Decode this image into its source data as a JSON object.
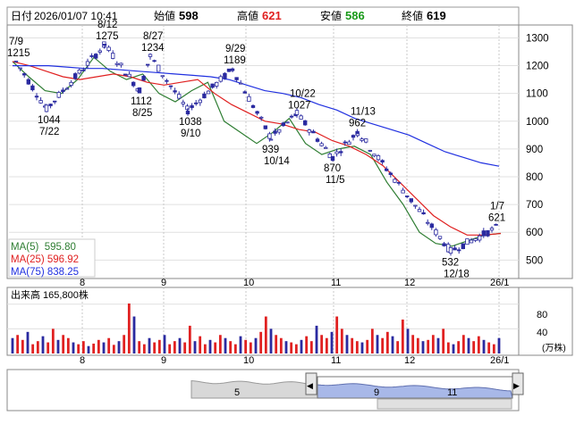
{
  "header": {
    "date_label": "日付",
    "datetime": "2026/01/07 10:41",
    "open_label": "始値",
    "open_value": "598",
    "high_label": "高値",
    "high_value": "621",
    "low_label": "安値",
    "low_value": "586",
    "close_label": "終値",
    "close_value": "619"
  },
  "colors": {
    "up_candle": "#2a2aa0",
    "down_candle": "#ffffff",
    "ma5": "#2e7d32",
    "ma25": "#e02020",
    "ma75": "#2030e0",
    "volume_red": "#e02020",
    "volume_blue": "#2a2aa0",
    "volume_annot": "#e02020",
    "navigator_fill": "#a8b8e8"
  },
  "legend": {
    "ma5": "MA(5)  595.80",
    "ma25": "MA(25) 596.92",
    "ma75": "MA(75) 838.25"
  },
  "volume_panel": {
    "title": "出来高 165,800株",
    "unit": "(万株)",
    "ticks": [
      "80",
      "40"
    ]
  },
  "x_axis_labels": [
    "8",
    "9",
    "10",
    "11",
    "12",
    "26/1"
  ],
  "navigator": {
    "labels": [
      "5",
      "9",
      "11"
    ],
    "left_arrow": "◀",
    "right_arrow": "▶"
  },
  "chart_data": {
    "type": "line",
    "title": "",
    "xlabel": "",
    "ylabel": "",
    "ylim": [
      440,
      1340
    ],
    "yticks": [
      500,
      600,
      700,
      800,
      900,
      1000,
      1100,
      1200,
      1300
    ],
    "price_series": {
      "name": "",
      "dates": [
        "7/9",
        "7/22",
        "8/12",
        "8/25",
        "8/27",
        "9/10",
        "9/29",
        "10/14",
        "10/22",
        "11/5",
        "11/13",
        "12/18",
        "1/7"
      ],
      "values": [
        1215,
        1044,
        1275,
        1112,
        1234,
        1038,
        1189,
        939,
        1027,
        870,
        962,
        532,
        621
      ]
    },
    "annotations": [
      {
        "date": "7/9",
        "value": "1215",
        "pos": "above"
      },
      {
        "date": "7/22",
        "value": "1044",
        "pos": "below"
      },
      {
        "date": "8/12",
        "value": "1275",
        "pos": "above"
      },
      {
        "date": "8/25",
        "value": "1112",
        "pos": "below"
      },
      {
        "date": "8/27",
        "value": "1234",
        "pos": "above"
      },
      {
        "date": "9/10",
        "value": "1038",
        "pos": "below"
      },
      {
        "date": "9/29",
        "value": "1189",
        "pos": "above"
      },
      {
        "date": "10/14",
        "value": "939",
        "pos": "below"
      },
      {
        "date": "10/22",
        "value": "1027",
        "pos": "above"
      },
      {
        "date": "11/5",
        "value": "870",
        "pos": "below"
      },
      {
        "date": "11/13",
        "value": "962",
        "pos": "above"
      },
      {
        "date": "12/18",
        "value": "532",
        "pos": "below"
      },
      {
        "date": "1/7",
        "value": "621",
        "pos": "above"
      }
    ],
    "ma_series": [
      {
        "name": "MA(5)",
        "values": [
          1215,
          1160,
          1110,
          1100,
          1150,
          1230,
          1180,
          1150,
          1170,
          1100,
          1070,
          1110,
          1140,
          1000,
          960,
          920,
          960,
          1010,
          920,
          880,
          900,
          910,
          880,
          780,
          700,
          600,
          560,
          550,
          570,
          590,
          596
        ]
      },
      {
        "name": "MA(25)",
        "values": [
          1215,
          1200,
          1180,
          1160,
          1150,
          1160,
          1170,
          1160,
          1140,
          1130,
          1140,
          1150,
          1100,
          1060,
          1030,
          1000,
          990,
          970,
          960,
          930,
          910,
          880,
          840,
          780,
          720,
          660,
          620,
          590,
          590,
          596
        ]
      },
      {
        "name": "MA(75)",
        "values": [
          1200,
          1200,
          1200,
          1195,
          1190,
          1190,
          1185,
          1180,
          1175,
          1170,
          1165,
          1160,
          1150,
          1130,
          1110,
          1100,
          1085,
          1060,
          1040,
          1010,
          990,
          970,
          950,
          920,
          890,
          870,
          850,
          838
        ]
      }
    ],
    "volume": {
      "unit": "万株",
      "ylim": [
        0,
        110
      ],
      "yticks": [
        40,
        80
      ],
      "values": [
        25,
        30,
        22,
        35,
        15,
        20,
        28,
        18,
        40,
        22,
        30,
        25,
        18,
        15,
        20,
        12,
        16,
        22,
        18,
        25,
        14,
        20,
        30,
        110,
        60,
        20,
        15,
        25,
        18,
        22,
        30,
        15,
        20,
        25,
        18,
        45,
        20,
        28,
        15,
        22,
        18,
        30,
        25,
        20,
        15,
        28,
        22,
        18,
        25,
        35,
        60,
        40,
        30,
        25,
        20,
        18,
        15,
        22,
        28,
        20,
        45,
        30,
        25,
        35,
        60,
        40,
        30,
        25,
        20,
        18,
        22,
        40,
        30,
        25,
        35,
        28,
        20,
        55,
        40,
        30,
        25,
        20,
        22,
        30,
        25,
        40,
        18,
        15,
        20,
        30,
        25,
        20,
        28,
        22,
        18,
        15,
        25
      ]
    }
  }
}
